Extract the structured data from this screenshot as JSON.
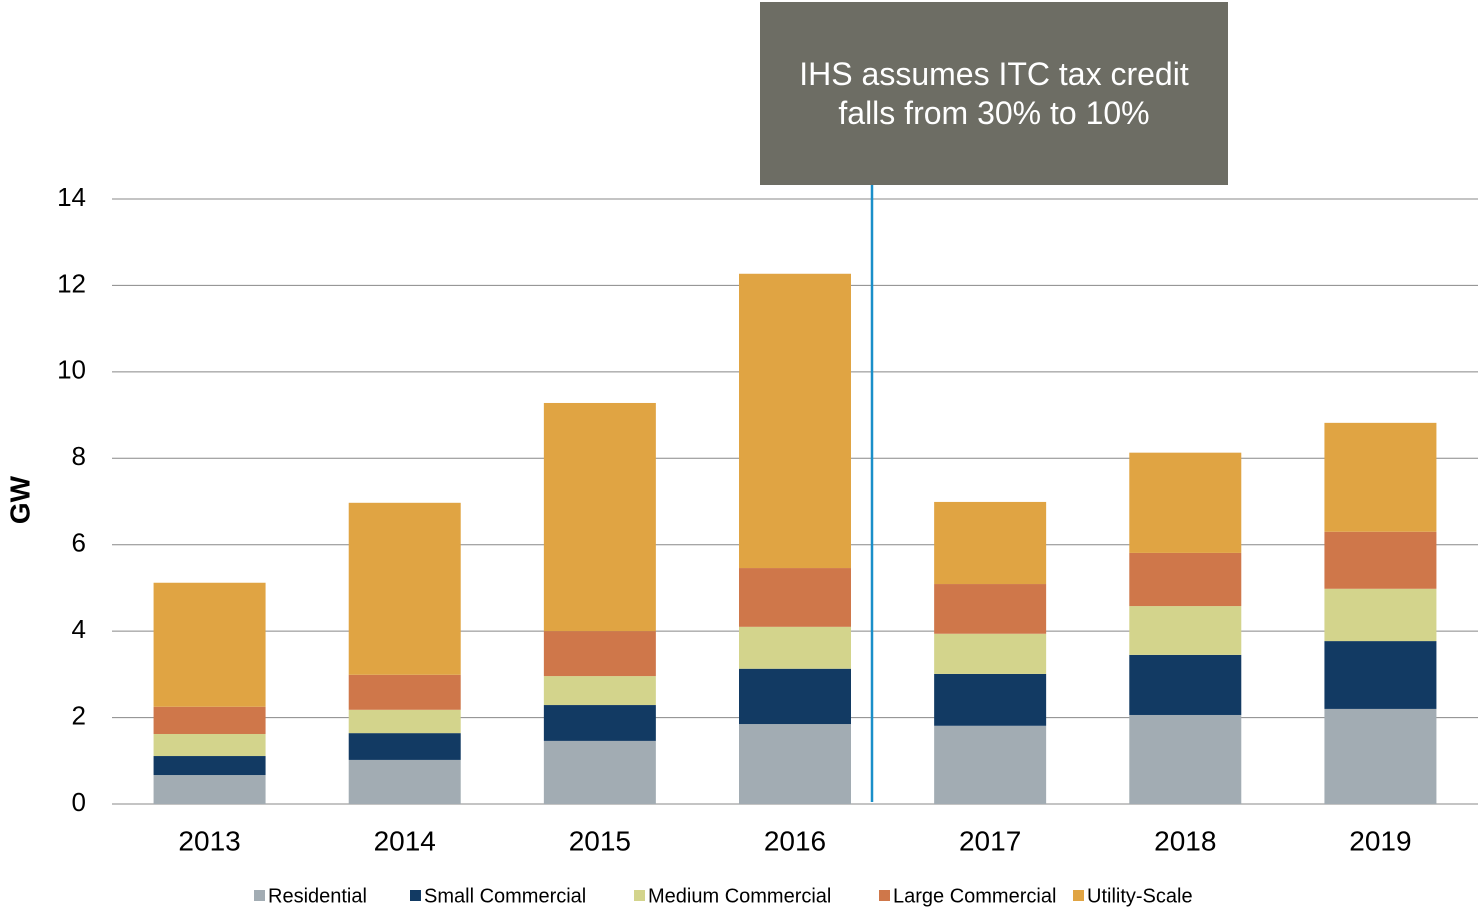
{
  "chart_data": {
    "type": "stacked_bar",
    "annotation": "IHS assumes ITC tax credit falls from 30% to 10%",
    "y_label": "GW",
    "categories": [
      "2013",
      "2014",
      "2015",
      "2016",
      "2017",
      "2018",
      "2019"
    ],
    "series": [
      {
        "name": "Residential",
        "color": "#a2acb3",
        "values": [
          0.67,
          1.02,
          1.46,
          1.85,
          1.81,
          2.06,
          2.2
        ]
      },
      {
        "name": "Small Commercial",
        "color": "#123a63",
        "values": [
          0.44,
          0.62,
          0.83,
          1.28,
          1.2,
          1.39,
          1.57
        ]
      },
      {
        "name": "Medium Commercial",
        "color": "#d3d48c",
        "values": [
          0.51,
          0.54,
          0.67,
          0.97,
          0.93,
          1.13,
          1.21
        ]
      },
      {
        "name": "Large Commercial",
        "color": "#cf774a",
        "values": [
          0.63,
          0.81,
          1.04,
          1.36,
          1.15,
          1.23,
          1.32
        ]
      },
      {
        "name": "Utility-Scale",
        "color": "#e0a443",
        "values": [
          2.87,
          3.98,
          5.28,
          6.81,
          1.9,
          2.32,
          2.52
        ]
      }
    ],
    "ylim": [
      0,
      14
    ],
    "yticks": [
      0,
      2,
      4,
      6,
      8,
      10,
      12,
      14
    ],
    "grid": true
  }
}
